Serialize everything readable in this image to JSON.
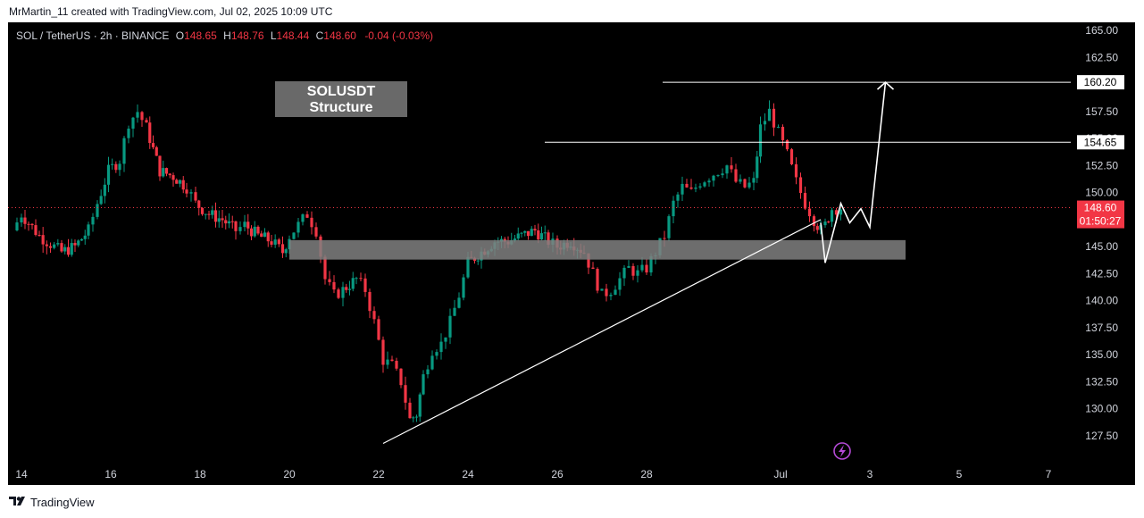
{
  "header": {
    "credit": "MrMartin_11 created with TradingView.com, Jul 02, 2025 10:09 UTC"
  },
  "legend": {
    "symbol": "SOL / TetherUS · 2h · BINANCE",
    "open_label": "O",
    "open": "148.65",
    "high_label": "H",
    "high": "148.76",
    "low_label": "L",
    "low": "148.44",
    "close_label": "C",
    "close": "148.60",
    "change": "-0.04 (-0.03%)"
  },
  "annotation": {
    "line1": "SOLUSDT",
    "line2": "Structure"
  },
  "price_tags": {
    "resistance_high": "160.20",
    "resistance_low": "154.65",
    "last_price": "148.60",
    "countdown": "01:50:27"
  },
  "footer": {
    "brand": "TradingView"
  },
  "colors": {
    "up": "#089981",
    "down": "#f23645",
    "background": "#000000",
    "zone": "#808080",
    "lines": "#ffffff",
    "last_price": "#f23645"
  },
  "icons": [
    "lightning-icon",
    "tradingview-logo-icon"
  ],
  "chart_data": {
    "type": "candlestick",
    "title": "SOL / TetherUS · 2h · BINANCE",
    "y_ticks": [
      "165.00",
      "162.50",
      "160.00",
      "157.50",
      "155.00",
      "152.50",
      "150.00",
      "147.50",
      "145.00",
      "142.50",
      "140.00",
      "137.50",
      "135.00",
      "132.50",
      "130.00",
      "127.50"
    ],
    "ylim": [
      125.9,
      166.2
    ],
    "x_ticks": [
      "14",
      "16",
      "18",
      "20",
      "22",
      "24",
      "26",
      "28",
      "Jul",
      "3",
      "5",
      "7"
    ],
    "x_day_range": [
      13.7,
      38.1
    ],
    "grid": false,
    "resistance_levels": [
      160.2,
      154.65
    ],
    "support_zone": [
      143.8,
      145.6
    ],
    "support_zone_days": [
      20.0,
      33.8
    ],
    "trendline": {
      "from": [
        22.1,
        126.8
      ],
      "to": [
        31.9,
        147.5
      ]
    },
    "projection": [
      [
        31.9,
        147.2
      ],
      [
        32.0,
        143.5
      ],
      [
        32.35,
        149.0
      ],
      [
        32.55,
        147.2
      ],
      [
        32.8,
        148.5
      ],
      [
        33.0,
        146.8
      ],
      [
        33.35,
        160.2
      ]
    ],
    "key_points": {
      "high_day_16_5": 158.4,
      "low_day_22_6": 126.5,
      "high_jun_30": 160.2,
      "last_close": 148.6
    },
    "path": [
      [
        13.8,
        146.5
      ],
      [
        14.0,
        148.0
      ],
      [
        14.4,
        146.0
      ],
      [
        14.9,
        144.5
      ],
      [
        15.2,
        145.0
      ],
      [
        15.5,
        146.5
      ],
      [
        15.7,
        149.0
      ],
      [
        15.95,
        152.0
      ],
      [
        16.2,
        153.0
      ],
      [
        16.4,
        156.5
      ],
      [
        16.6,
        157.5
      ],
      [
        16.8,
        156.0
      ],
      [
        16.95,
        154.0
      ],
      [
        17.1,
        152.0
      ],
      [
        17.4,
        151.5
      ],
      [
        17.7,
        150.5
      ],
      [
        17.9,
        149.0
      ],
      [
        18.2,
        148.0
      ],
      [
        18.5,
        147.5
      ],
      [
        18.8,
        146.5
      ],
      [
        19.0,
        147.0
      ],
      [
        19.3,
        146.0
      ],
      [
        19.6,
        145.5
      ],
      [
        19.85,
        144.5
      ],
      [
        20.0,
        146.0
      ],
      [
        20.2,
        147.0
      ],
      [
        20.4,
        148.0
      ],
      [
        20.6,
        146.5
      ],
      [
        20.8,
        142.0
      ],
      [
        21.0,
        140.5
      ],
      [
        21.2,
        141.0
      ],
      [
        21.5,
        142.0
      ],
      [
        21.7,
        141.0
      ],
      [
        21.9,
        138.0
      ],
      [
        22.1,
        134.5
      ],
      [
        22.3,
        134.0
      ],
      [
        22.5,
        132.5
      ],
      [
        22.7,
        129.0
      ],
      [
        22.85,
        129.5
      ],
      [
        23.0,
        133.0
      ],
      [
        23.2,
        135.5
      ],
      [
        23.4,
        136.0
      ],
      [
        23.6,
        138.0
      ],
      [
        23.8,
        140.5
      ],
      [
        24.0,
        143.5
      ],
      [
        24.3,
        144.5
      ],
      [
        24.6,
        145.5
      ],
      [
        24.9,
        145.5
      ],
      [
        25.2,
        146.0
      ],
      [
        25.5,
        146.5
      ],
      [
        25.8,
        145.5
      ],
      [
        26.0,
        145.0
      ],
      [
        26.3,
        145.5
      ],
      [
        26.6,
        144.5
      ],
      [
        26.8,
        142.5
      ],
      [
        27.0,
        140.5
      ],
      [
        27.2,
        141.0
      ],
      [
        27.4,
        142.0
      ],
      [
        27.6,
        143.0
      ],
      [
        27.8,
        142.5
      ],
      [
        28.0,
        143.0
      ],
      [
        28.2,
        144.5
      ],
      [
        28.4,
        146.0
      ],
      [
        28.6,
        149.0
      ],
      [
        28.8,
        150.5
      ],
      [
        29.0,
        150.0
      ],
      [
        29.2,
        151.0
      ],
      [
        29.4,
        151.5
      ],
      [
        29.6,
        152.0
      ],
      [
        29.8,
        152.5
      ],
      [
        30.0,
        151.0
      ],
      [
        30.2,
        150.5
      ],
      [
        30.4,
        151.0
      ],
      [
        30.55,
        156.0
      ],
      [
        30.75,
        157.5
      ],
      [
        30.95,
        155.5
      ],
      [
        31.15,
        153.5
      ],
      [
        31.35,
        151.0
      ],
      [
        31.55,
        149.0
      ],
      [
        31.75,
        147.5
      ],
      [
        31.9,
        146.5
      ],
      [
        32.0,
        147.0
      ],
      [
        32.15,
        148.5
      ],
      [
        32.35,
        148.6
      ]
    ]
  }
}
